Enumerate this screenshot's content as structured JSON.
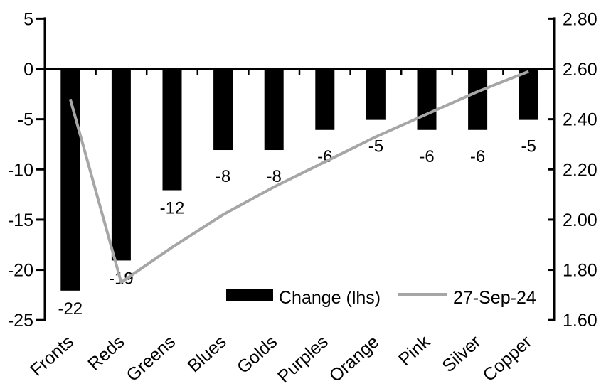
{
  "chart_data": {
    "type": "combo",
    "title": "",
    "categories": [
      "Fronts",
      "Reds",
      "Greens",
      "Blues",
      "Golds",
      "Purples",
      "Orange",
      "Pink",
      "Silver",
      "Copper"
    ],
    "series": [
      {
        "name": "Change (lhs)",
        "type": "bar",
        "axis": "left",
        "color": "#000000",
        "values": [
          -22,
          -19,
          -12,
          -8,
          -8,
          -6,
          -5,
          -6,
          -6,
          -5
        ],
        "data_labels": [
          "-22",
          "-19",
          "-12",
          "-8",
          "-8",
          "-6",
          "-5",
          "-6",
          "-6",
          "-5"
        ]
      },
      {
        "name": "27-Sep-24",
        "type": "line",
        "axis": "right",
        "color": "#a6a6a6",
        "values": [
          2.48,
          1.75,
          1.89,
          2.02,
          2.13,
          2.23,
          2.33,
          2.42,
          2.51,
          2.59
        ]
      }
    ],
    "left_axis": {
      "min": -25,
      "max": 5,
      "tick_interval": 5,
      "tick_labels": [
        "5",
        "0",
        "-5",
        "-10",
        "-15",
        "-20",
        "-25"
      ]
    },
    "right_axis": {
      "min": 1.6,
      "max": 2.8,
      "tick_interval": 0.2,
      "tick_labels": [
        "2.80",
        "2.60",
        "2.40",
        "2.20",
        "2.00",
        "1.80",
        "1.60"
      ]
    },
    "grid": "off",
    "legend": {
      "position": "bottom-center-inside",
      "entries": [
        "Change (lhs)",
        "27-Sep-24"
      ]
    }
  },
  "colors": {
    "bar": "#000000",
    "line": "#a6a6a6",
    "axis": "#000000",
    "background": "#ffffff"
  }
}
